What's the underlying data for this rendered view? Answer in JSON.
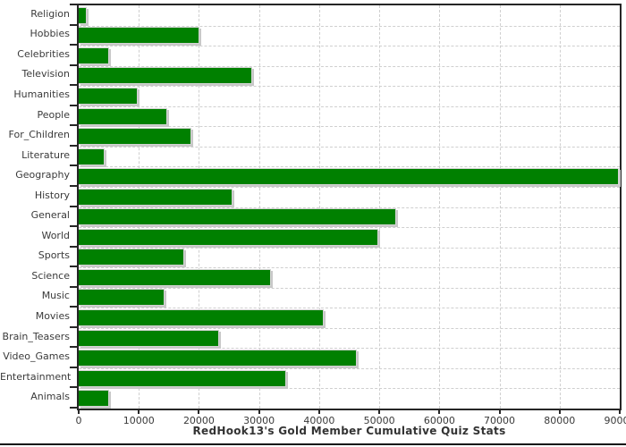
{
  "chart_data": {
    "type": "bar",
    "orientation": "horizontal",
    "title": "RedHook13's Gold Member Cumulative Quiz Stats",
    "categories": [
      "Religion",
      "Hobbies",
      "Celebrities",
      "Television",
      "Humanities",
      "People",
      "For_Children",
      "Literature",
      "Geography",
      "History",
      "General",
      "World",
      "Sports",
      "Science",
      "Music",
      "Movies",
      "Brain_Teasers",
      "Video_Games",
      "Entertainment",
      "Animals"
    ],
    "values": [
      1300,
      20100,
      5100,
      28900,
      9800,
      14800,
      18800,
      4300,
      89800,
      25600,
      52800,
      49800,
      17500,
      32000,
      14300,
      40800,
      23400,
      46200,
      34500,
      5000
    ],
    "xlim": [
      0,
      90000
    ],
    "x_ticks": [
      0,
      10000,
      20000,
      30000,
      40000,
      50000,
      60000,
      70000,
      80000,
      90000
    ],
    "xlabel": "",
    "ylabel": "",
    "grid": "dashed-both",
    "legend": "none",
    "colors": {
      "bar": "#008000",
      "bar_shadow": "#c8c8c8",
      "grid": "#cfcfcf",
      "axis_border": "#262626",
      "text": "#3a3a3a",
      "title_text": "#333333",
      "background": "#ffffff",
      "bottom_line": "#111111"
    }
  }
}
